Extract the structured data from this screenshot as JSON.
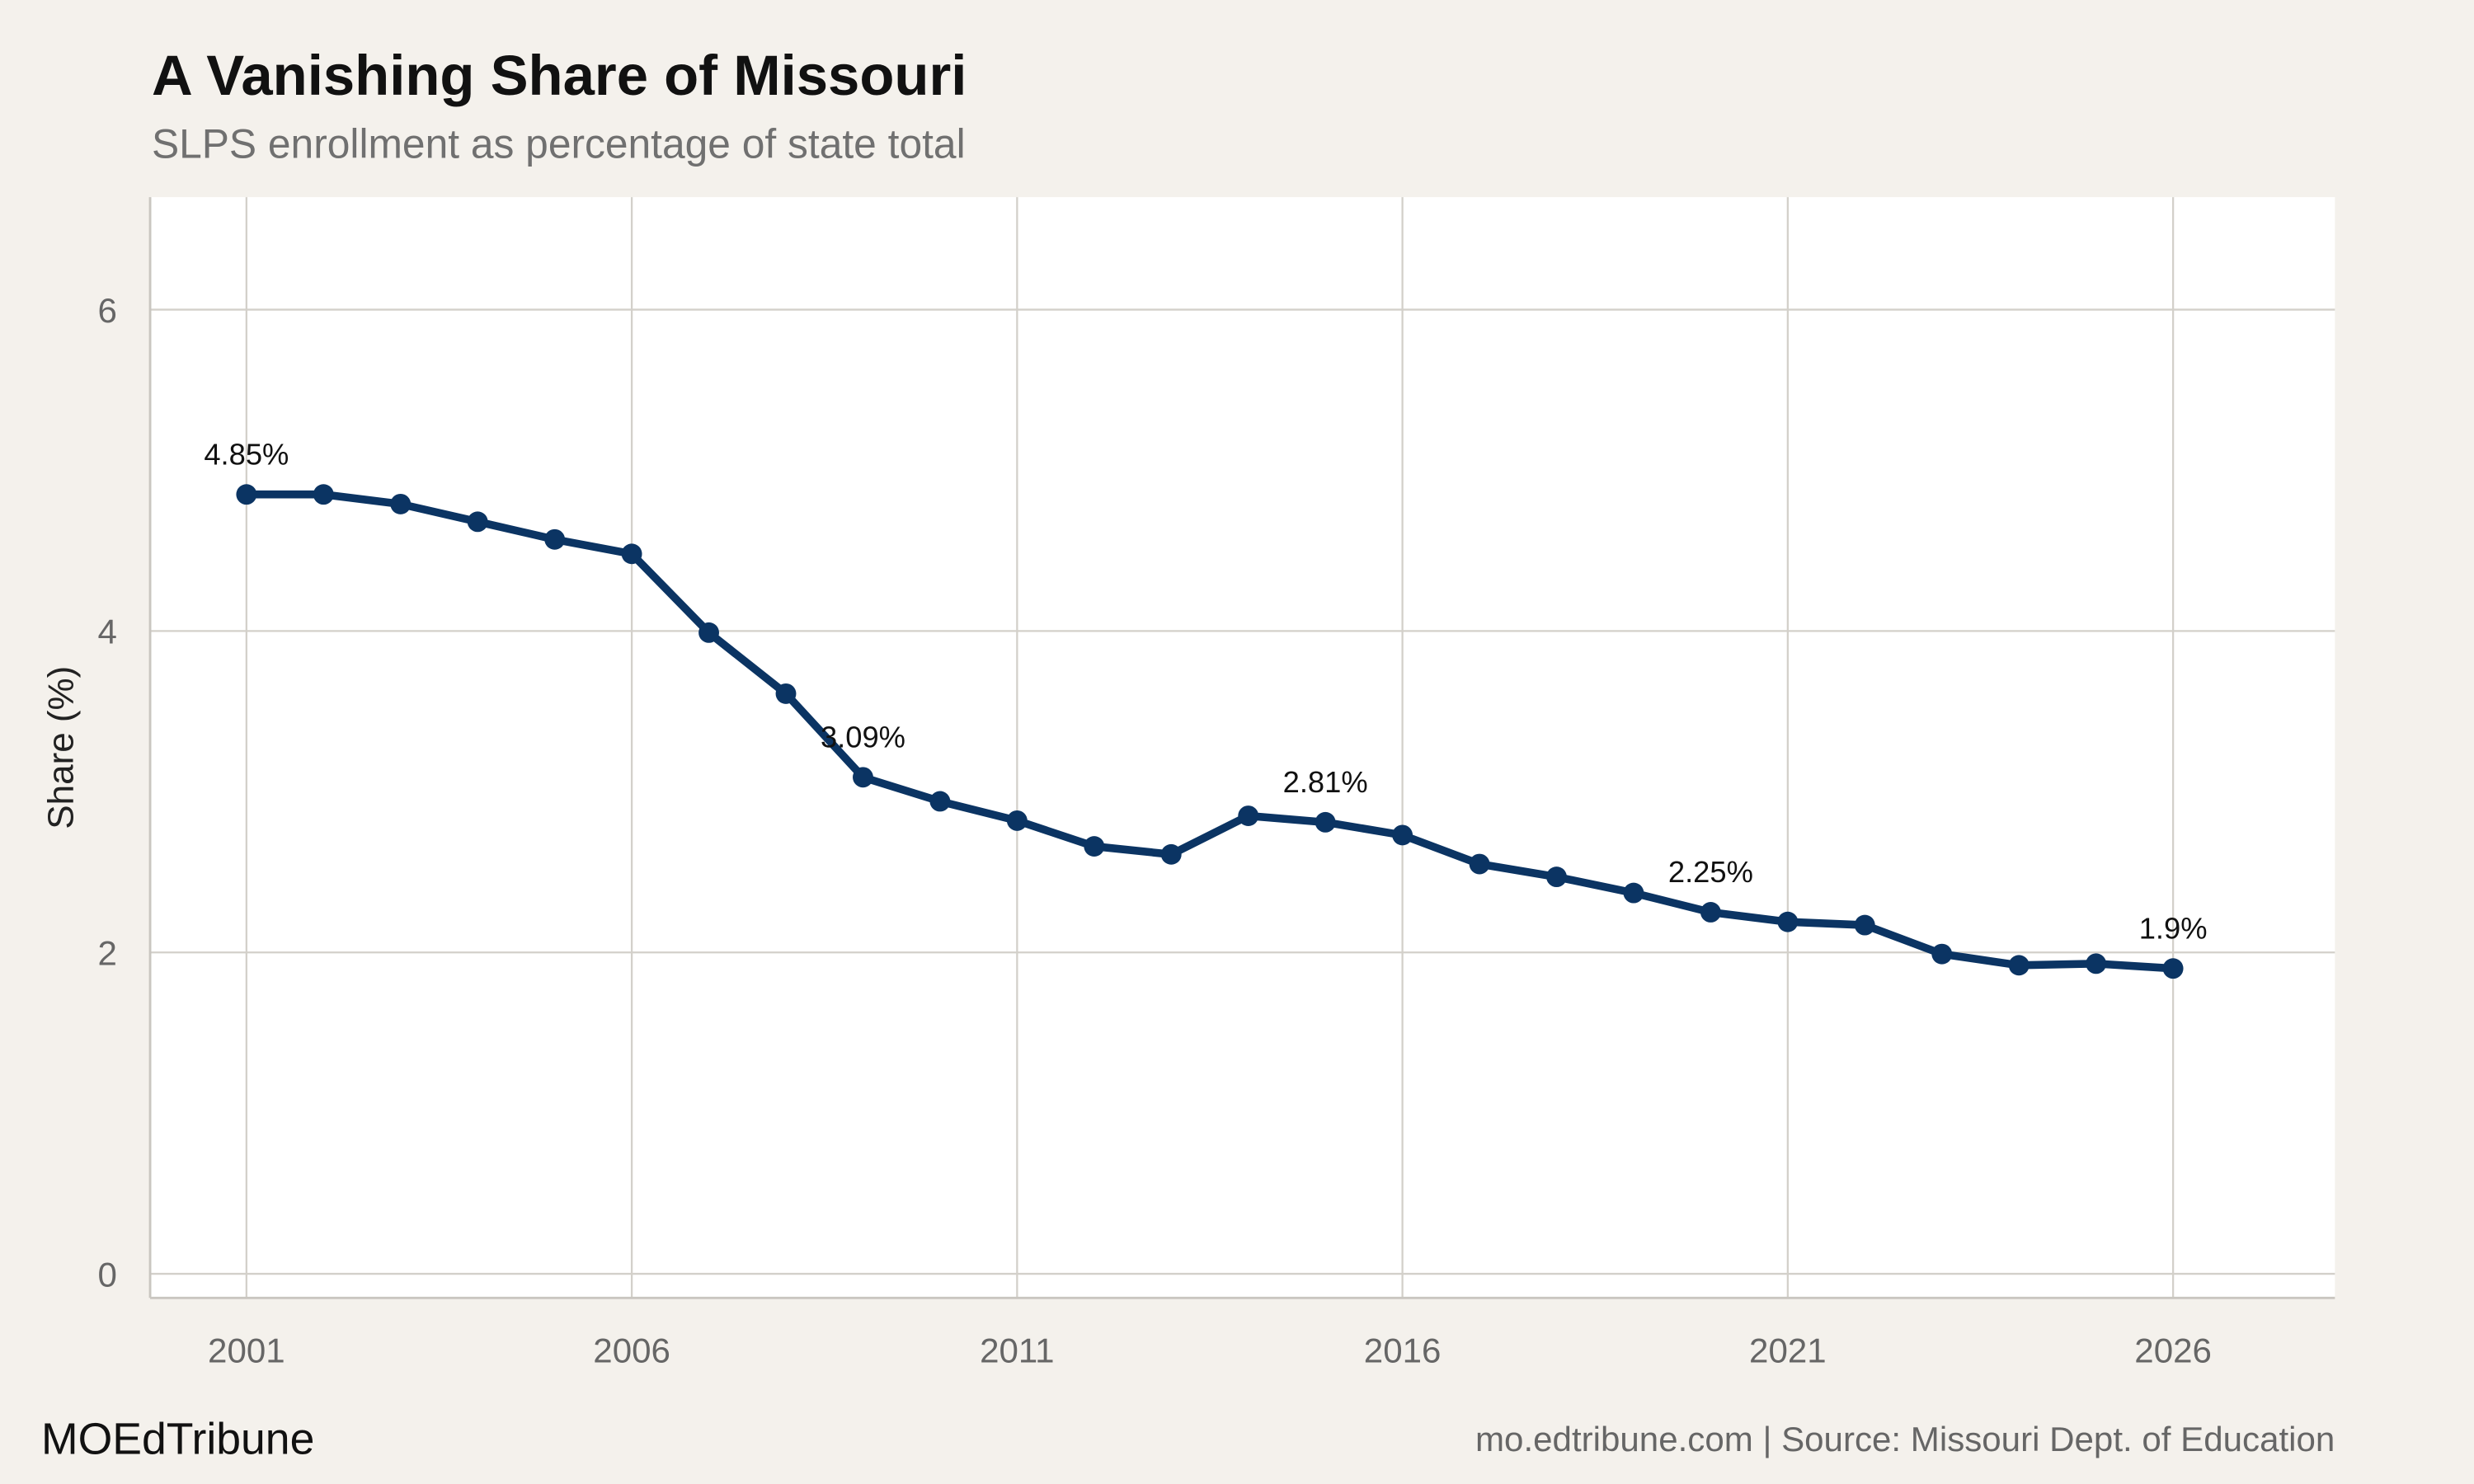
{
  "header": {
    "title": "A Vanishing Share of Missouri",
    "subtitle": "SLPS enrollment as percentage of state total"
  },
  "footer": {
    "brand": "MOEdTribune",
    "source": "mo.edtribune.com | Source: Missouri Dept. of Education"
  },
  "colors": {
    "line": "#0b3463",
    "background": "#f4f1ec",
    "panel": "#ffffff",
    "grid": "#d3d0ca"
  },
  "chart_data": {
    "type": "line",
    "title": "A Vanishing Share of Missouri",
    "subtitle": "SLPS enrollment as percentage of state total",
    "xlabel": "",
    "ylabel": "Share (%)",
    "xlim": [
      1999.75,
      2028.1
    ],
    "ylim": [
      -0.15,
      6.7
    ],
    "grid": true,
    "x_ticks": [
      2001,
      2006,
      2011,
      2016,
      2021,
      2026
    ],
    "y_ticks": [
      0,
      2,
      4,
      6
    ],
    "x": [
      2001,
      2002,
      2003,
      2004,
      2005,
      2006,
      2007,
      2008,
      2009,
      2010,
      2011,
      2012,
      2013,
      2014,
      2015,
      2016,
      2017,
      2018,
      2019,
      2020,
      2021,
      2022,
      2023,
      2024,
      2025,
      2026
    ],
    "values": [
      4.85,
      4.85,
      4.79,
      4.68,
      4.57,
      4.48,
      3.99,
      3.61,
      3.09,
      2.94,
      2.82,
      2.66,
      2.61,
      2.85,
      2.81,
      2.73,
      2.55,
      2.47,
      2.37,
      2.25,
      2.19,
      2.17,
      1.99,
      1.92,
      1.93,
      1.9
    ],
    "annotations": [
      {
        "x": 2001,
        "y": 4.85,
        "text": "4.85%"
      },
      {
        "x": 2009,
        "y": 3.09,
        "text": "3.09%"
      },
      {
        "x": 2015,
        "y": 2.81,
        "text": "2.81%"
      },
      {
        "x": 2020,
        "y": 2.25,
        "text": "2.25%"
      },
      {
        "x": 2026,
        "y": 1.9,
        "text": "1.9%"
      }
    ]
  }
}
